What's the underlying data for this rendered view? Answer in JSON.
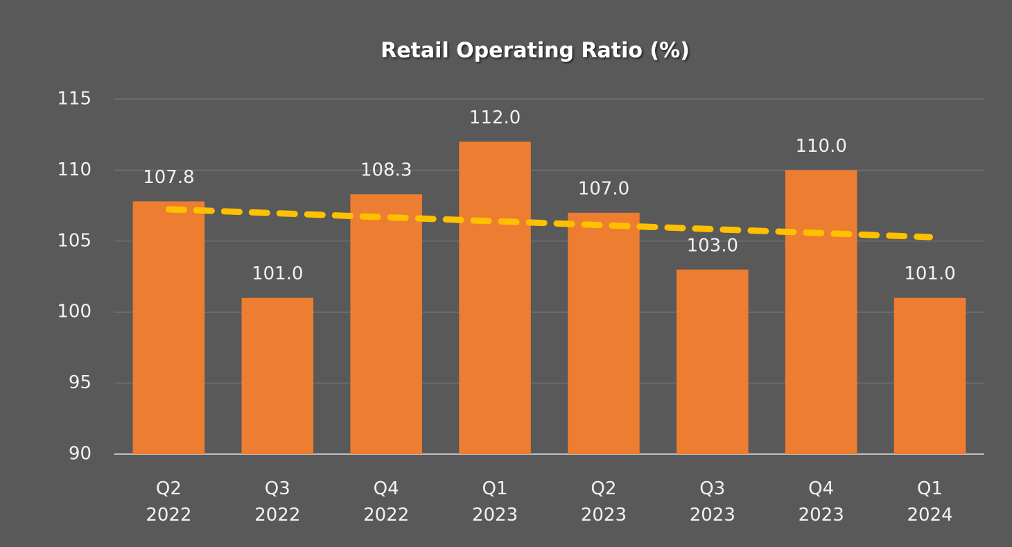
{
  "chart_data": {
    "type": "bar",
    "title": "Retail Operating Ratio (%)",
    "categories": [
      "Q2 2022",
      "Q3 2022",
      "Q4 2022",
      "Q1 2023",
      "Q2 2023",
      "Q3 2023",
      "Q4 2023",
      "Q1 2024"
    ],
    "values": [
      107.8,
      101,
      108.3,
      112,
      107,
      103,
      110,
      101
    ],
    "value_labels": [
      "107.8",
      "101.0",
      "108.3",
      "112.0",
      "107.0",
      "103.0",
      "110.0",
      "101.0"
    ],
    "color": "#ed7d31",
    "ylim": [
      90,
      115
    ],
    "yticks": [
      90,
      95,
      100,
      105,
      110,
      115
    ],
    "grid": true,
    "trendline": {
      "type": "linear",
      "color": "#ffc000",
      "dashed": true
    }
  }
}
